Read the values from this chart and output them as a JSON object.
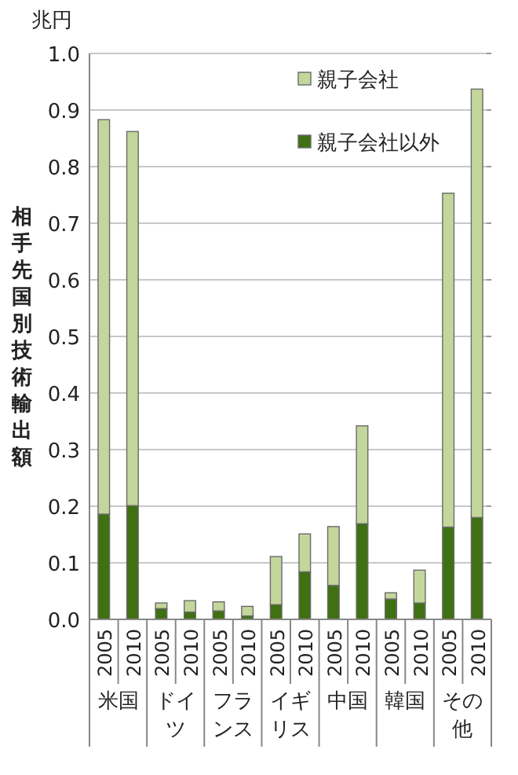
{
  "chart_data": {
    "type": "bar",
    "stacked": true,
    "ylabel": "相手先国別技術輸出額",
    "annotations": [
      "兆円",
      "米国",
      "ドイツ",
      "フランス",
      "イギリス",
      "中国",
      "韓国",
      "その他"
    ],
    "categories": [
      "2005",
      "2010",
      "2005",
      "2010",
      "2005",
      "2010",
      "2005",
      "2010",
      "2005",
      "2010",
      "2005",
      "2010",
      "2005",
      "2010"
    ],
    "series": [
      {
        "name": "親子会社以外",
        "color": "#3f7012",
        "values": [
          0.186,
          0.201,
          0.019,
          0.013,
          0.015,
          0.006,
          0.026,
          0.084,
          0.06,
          0.169,
          0.036,
          0.029,
          0.163,
          0.18
        ]
      },
      {
        "name": "親子会社",
        "color": "#c3d69b",
        "values": [
          0.697,
          0.661,
          0.01,
          0.02,
          0.016,
          0.017,
          0.085,
          0.067,
          0.104,
          0.173,
          0.011,
          0.058,
          0.59,
          0.757
        ]
      }
    ],
    "ylim": [
      0,
      1
    ],
    "yticks": [
      {
        "value": 0,
        "label": "0.0"
      },
      {
        "value": 0.1,
        "label": "0.1"
      },
      {
        "value": 0.2,
        "label": "0.2"
      },
      {
        "value": 0.3,
        "label": "0.3"
      },
      {
        "value": 0.4,
        "label": "0.4"
      },
      {
        "value": 0.5,
        "label": "0.5"
      },
      {
        "value": 0.6,
        "label": "0.6"
      },
      {
        "value": 0.7,
        "label": "0.7"
      },
      {
        "value": 0.8,
        "label": "0.8"
      },
      {
        "value": 0.9,
        "label": "0.9"
      },
      {
        "value": 1,
        "label": "1.0"
      }
    ],
    "grid": "y",
    "legend": "top right"
  }
}
